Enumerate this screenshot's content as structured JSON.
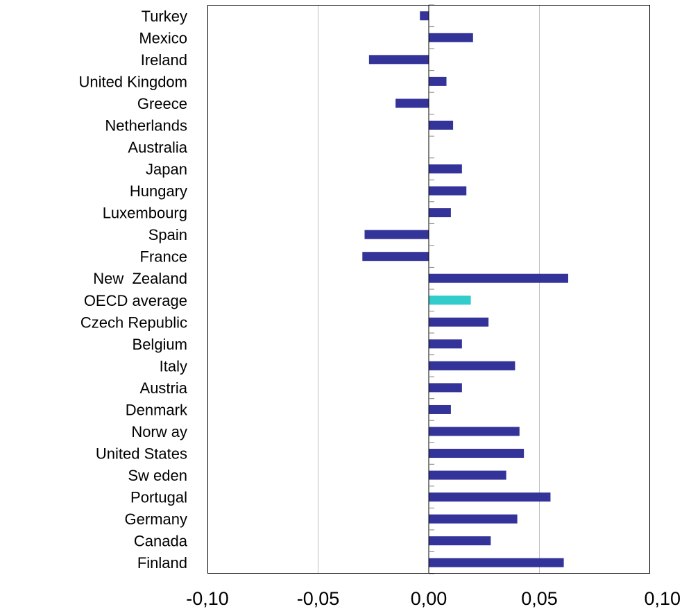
{
  "chart_data": {
    "type": "bar",
    "orientation": "horizontal",
    "title": "",
    "xlabel": "",
    "ylabel": "",
    "categories": [
      "Turkey",
      "Mexico",
      "Ireland",
      "United Kingdom",
      "Greece",
      "Netherlands",
      "Australia",
      "Japan",
      "Hungary",
      "Luxembourg",
      "Spain",
      "France",
      "New  Zealand",
      "OECD average",
      "Czech Republic",
      "Belgium",
      "Italy",
      "Austria",
      "Denmark",
      "Norw ay",
      "United States",
      "Sw eden",
      "Portugal",
      "Germany",
      "Canada",
      "Finland"
    ],
    "values": [
      -0.004,
      0.02,
      -0.027,
      0.008,
      -0.015,
      0.011,
      0.0,
      0.015,
      0.017,
      0.01,
      -0.029,
      -0.03,
      0.063,
      0.019,
      0.027,
      0.015,
      0.039,
      0.015,
      0.01,
      0.041,
      0.043,
      0.035,
      0.055,
      0.04,
      0.028,
      0.061
    ],
    "highlight_category": "OECD average",
    "xlim": [
      -0.1,
      0.1
    ],
    "xticks": [
      -0.1,
      -0.05,
      0.0,
      0.05,
      0.1
    ],
    "xtick_labels": [
      "-0,10",
      "-0,05",
      "0,00",
      "0,05",
      "0,10"
    ],
    "grid": true,
    "legend": "none",
    "colors": {
      "bar": "#333399",
      "highlight": "#33cccc",
      "grid": "#c0c0c0",
      "frame": "#000000"
    }
  }
}
